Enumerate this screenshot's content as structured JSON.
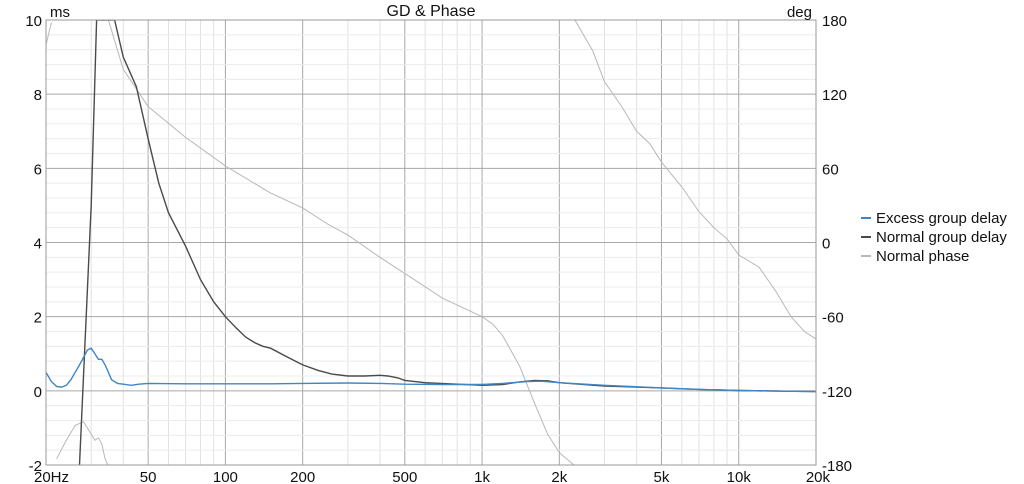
{
  "chart_data": {
    "type": "line",
    "title": "GD & Phase",
    "y_left_unit": "ms",
    "y_right_unit": "deg",
    "x_scale": "log",
    "xlim": [
      20,
      20000
    ],
    "ylim_left": [
      -2,
      10
    ],
    "ylim_right": [
      -180,
      180
    ],
    "x_ticks": [
      {
        "value": 20,
        "label": "20Hz"
      },
      {
        "value": 50,
        "label": "50"
      },
      {
        "value": 100,
        "label": "100"
      },
      {
        "value": 200,
        "label": "200"
      },
      {
        "value": 500,
        "label": "500"
      },
      {
        "value": 1000,
        "label": "1k"
      },
      {
        "value": 2000,
        "label": "2k"
      },
      {
        "value": 5000,
        "label": "5k"
      },
      {
        "value": 10000,
        "label": "10k"
      },
      {
        "value": 20000,
        "label": "20k"
      }
    ],
    "y_left_ticks": [
      {
        "value": -2,
        "label": "-2"
      },
      {
        "value": 0,
        "label": "0"
      },
      {
        "value": 2,
        "label": "2"
      },
      {
        "value": 4,
        "label": "4"
      },
      {
        "value": 6,
        "label": "6"
      },
      {
        "value": 8,
        "label": "8"
      },
      {
        "value": 10,
        "label": "10"
      }
    ],
    "y_right_ticks": [
      {
        "value": -180,
        "label": "-180"
      },
      {
        "value": -120,
        "label": "-120"
      },
      {
        "value": -60,
        "label": "-60"
      },
      {
        "value": 0,
        "label": "0"
      },
      {
        "value": 60,
        "label": "60"
      },
      {
        "value": 120,
        "label": "120"
      },
      {
        "value": 180,
        "label": "180"
      }
    ],
    "grid": true,
    "legend_position": "right",
    "series": [
      {
        "name": "Excess group delay",
        "axis": "left",
        "color": "#3f86c6",
        "points": [
          [
            20,
            0.5
          ],
          [
            21,
            0.25
          ],
          [
            22,
            0.12
          ],
          [
            23,
            0.1
          ],
          [
            24,
            0.15
          ],
          [
            25,
            0.3
          ],
          [
            26,
            0.5
          ],
          [
            27,
            0.7
          ],
          [
            28,
            0.9
          ],
          [
            29,
            1.1
          ],
          [
            30,
            1.15
          ],
          [
            31,
            1.0
          ],
          [
            32,
            0.85
          ],
          [
            33,
            0.85
          ],
          [
            34,
            0.7
          ],
          [
            35,
            0.5
          ],
          [
            36,
            0.3
          ],
          [
            38,
            0.2
          ],
          [
            40,
            0.18
          ],
          [
            43,
            0.15
          ],
          [
            46,
            0.18
          ],
          [
            50,
            0.2
          ],
          [
            70,
            0.19
          ],
          [
            100,
            0.19
          ],
          [
            150,
            0.19
          ],
          [
            200,
            0.2
          ],
          [
            300,
            0.21
          ],
          [
            400,
            0.2
          ],
          [
            500,
            0.18
          ],
          [
            700,
            0.17
          ],
          [
            1000,
            0.17
          ],
          [
            1200,
            0.2
          ],
          [
            1500,
            0.25
          ],
          [
            1700,
            0.26
          ],
          [
            2000,
            0.22
          ],
          [
            3000,
            0.15
          ],
          [
            5000,
            0.08
          ],
          [
            7000,
            0.04
          ],
          [
            10000,
            0.01
          ],
          [
            15000,
            -0.01
          ],
          [
            20000,
            -0.02
          ]
        ]
      },
      {
        "name": "Normal group delay",
        "axis": "left",
        "color": "#4a4a4a",
        "points": [
          [
            27,
            -2
          ],
          [
            30,
            5
          ],
          [
            31.5,
            10
          ],
          [
            37,
            10
          ],
          [
            40,
            9
          ],
          [
            45,
            8.2
          ],
          [
            50,
            6.8
          ],
          [
            55,
            5.6
          ],
          [
            60,
            4.8
          ],
          [
            70,
            3.9
          ],
          [
            80,
            3.0
          ],
          [
            90,
            2.4
          ],
          [
            100,
            2.0
          ],
          [
            110,
            1.7
          ],
          [
            120,
            1.45
          ],
          [
            130,
            1.3
          ],
          [
            140,
            1.2
          ],
          [
            150,
            1.15
          ],
          [
            170,
            0.95
          ],
          [
            200,
            0.7
          ],
          [
            230,
            0.55
          ],
          [
            260,
            0.45
          ],
          [
            300,
            0.4
          ],
          [
            350,
            0.4
          ],
          [
            400,
            0.42
          ],
          [
            430,
            0.4
          ],
          [
            470,
            0.35
          ],
          [
            500,
            0.28
          ],
          [
            600,
            0.22
          ],
          [
            800,
            0.18
          ],
          [
            1000,
            0.15
          ],
          [
            1200,
            0.17
          ],
          [
            1400,
            0.24
          ],
          [
            1600,
            0.28
          ],
          [
            1800,
            0.27
          ],
          [
            2000,
            0.22
          ],
          [
            3000,
            0.13
          ],
          [
            5000,
            0.08
          ],
          [
            7000,
            0.04
          ],
          [
            10000,
            0.01
          ],
          [
            15000,
            -0.01
          ],
          [
            20000,
            -0.02
          ]
        ]
      },
      {
        "name": "Normal phase",
        "axis": "right",
        "color": "#b8b8b8",
        "points": [
          [
            20,
            160
          ],
          [
            21,
            178
          ],
          [
            22,
            -175
          ],
          [
            24,
            -160
          ],
          [
            26,
            -148
          ],
          [
            28,
            -145
          ],
          [
            30,
            -155
          ],
          [
            31,
            -160
          ],
          [
            32,
            -158
          ],
          [
            33,
            -163
          ],
          [
            34,
            -175
          ],
          [
            34.8,
            -180
          ],
          [
            35,
            180
          ],
          [
            40,
            140
          ],
          [
            50,
            110
          ],
          [
            70,
            85
          ],
          [
            100,
            62
          ],
          [
            150,
            40
          ],
          [
            200,
            28
          ],
          [
            250,
            15
          ],
          [
            300,
            6
          ],
          [
            400,
            -12
          ],
          [
            500,
            -25
          ],
          [
            700,
            -45
          ],
          [
            1000,
            -60
          ],
          [
            1100,
            -66
          ],
          [
            1200,
            -75
          ],
          [
            1400,
            -100
          ],
          [
            1600,
            -130
          ],
          [
            1800,
            -155
          ],
          [
            2000,
            -170
          ],
          [
            2280,
            -180
          ],
          [
            2300,
            180
          ],
          [
            2700,
            155
          ],
          [
            3000,
            130
          ],
          [
            3500,
            110
          ],
          [
            4000,
            90
          ],
          [
            4500,
            80
          ],
          [
            5000,
            65
          ],
          [
            6000,
            45
          ],
          [
            7000,
            25
          ],
          [
            8000,
            12
          ],
          [
            9000,
            3
          ],
          [
            10000,
            -10
          ],
          [
            12000,
            -20
          ],
          [
            14000,
            -40
          ],
          [
            16000,
            -60
          ],
          [
            18000,
            -72
          ],
          [
            20000,
            -78
          ]
        ]
      }
    ]
  }
}
